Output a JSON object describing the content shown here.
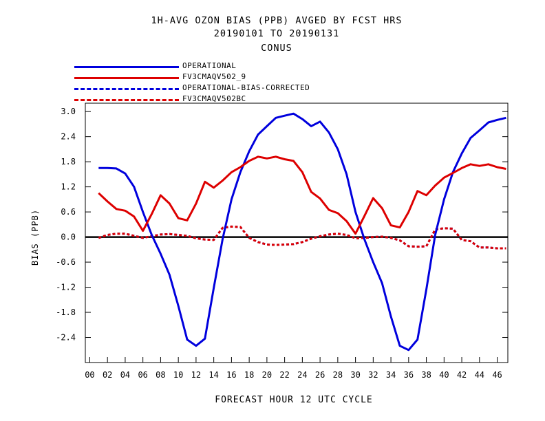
{
  "chart_data": {
    "type": "line",
    "title": [
      "1H-AVG OZON BIAS (PPB)  AVGED BY FCST HRS",
      "20190101 TO 20190131",
      "CONUS"
    ],
    "xlabel": "FORECAST HOUR  12 UTC CYCLE",
    "ylabel": "BIAS (PPB)",
    "xlim": [
      -0.5,
      47.2
    ],
    "ylim": [
      -3.0,
      3.2
    ],
    "xticks": [
      "00",
      "02",
      "04",
      "06",
      "08",
      "10",
      "12",
      "14",
      "16",
      "18",
      "20",
      "22",
      "24",
      "26",
      "28",
      "30",
      "32",
      "34",
      "36",
      "38",
      "40",
      "42",
      "44",
      "46"
    ],
    "yticks": [
      "3.0",
      "2.4",
      "1.8",
      "1.2",
      "0.6",
      "0.0",
      "-0.6",
      "-1.2",
      "-1.8",
      "-2.4"
    ],
    "legend_position": "top-left",
    "grid": false,
    "zero_line": true,
    "x": [
      1,
      2,
      3,
      4,
      5,
      6,
      7,
      8,
      9,
      10,
      11,
      12,
      13,
      14,
      15,
      16,
      17,
      18,
      19,
      20,
      21,
      22,
      23,
      24,
      25,
      26,
      27,
      28,
      29,
      30,
      31,
      32,
      33,
      34,
      35,
      36,
      37,
      38,
      39,
      40,
      41,
      42,
      43,
      44,
      45,
      46,
      47
    ],
    "series": [
      {
        "name": "OPERATIONAL",
        "color": "#0000dd",
        "style": "solid",
        "values": [
          1.65,
          1.65,
          1.64,
          1.52,
          1.2,
          0.6,
          0.05,
          -0.4,
          -0.9,
          -1.65,
          -2.45,
          -2.6,
          -2.43,
          -1.22,
          -0.05,
          0.9,
          1.55,
          2.05,
          2.45,
          2.65,
          2.85,
          2.9,
          2.95,
          2.82,
          2.65,
          2.76,
          2.5,
          2.1,
          1.5,
          0.6,
          -0.05,
          -0.6,
          -1.1,
          -1.9,
          -2.6,
          -2.7,
          -2.45,
          -1.25,
          0.05,
          0.9,
          1.55,
          2.0,
          2.37,
          2.55,
          2.74,
          2.8,
          2.85
        ]
      },
      {
        "name": "FV3CMAQV502_9",
        "color": "#dd0000",
        "style": "solid",
        "values": [
          1.05,
          0.85,
          0.67,
          0.63,
          0.49,
          0.15,
          0.55,
          1.0,
          0.8,
          0.45,
          0.4,
          0.8,
          1.32,
          1.18,
          1.35,
          1.55,
          1.67,
          1.82,
          1.92,
          1.88,
          1.92,
          1.86,
          1.82,
          1.55,
          1.08,
          0.92,
          0.65,
          0.57,
          0.38,
          0.08,
          0.5,
          0.93,
          0.69,
          0.28,
          0.23,
          0.6,
          1.1,
          1.0,
          1.23,
          1.42,
          1.53,
          1.65,
          1.74,
          1.7,
          1.74,
          1.67,
          1.63
        ]
      },
      {
        "name": "OPERATIONAL-BIAS-CORRECTED",
        "color": "#0000dd",
        "style": "dashed",
        "values": [
          -0.02,
          0.05,
          0.08,
          0.08,
          0.03,
          -0.02,
          0.02,
          0.06,
          0.07,
          0.05,
          0.03,
          -0.03,
          -0.06,
          -0.07,
          0.22,
          0.25,
          0.24,
          -0.02,
          -0.12,
          -0.18,
          -0.19,
          -0.18,
          -0.17,
          -0.12,
          -0.04,
          0.02,
          0.06,
          0.08,
          0.05,
          -0.03,
          -0.02,
          0.0,
          0.01,
          -0.02,
          -0.08,
          -0.22,
          -0.23,
          -0.22,
          0.18,
          0.21,
          0.2,
          -0.07,
          -0.1,
          -0.25,
          -0.25,
          -0.27,
          -0.27
        ]
      },
      {
        "name": "FV3CMAQV502BC",
        "color": "#dd0000",
        "style": "dashed",
        "values": [
          -0.02,
          0.05,
          0.08,
          0.08,
          0.03,
          -0.02,
          0.02,
          0.06,
          0.07,
          0.05,
          0.03,
          -0.03,
          -0.06,
          -0.07,
          0.22,
          0.25,
          0.24,
          -0.02,
          -0.12,
          -0.18,
          -0.19,
          -0.18,
          -0.17,
          -0.12,
          -0.04,
          0.02,
          0.06,
          0.08,
          0.05,
          -0.03,
          -0.02,
          0.0,
          0.01,
          -0.02,
          -0.08,
          -0.22,
          -0.23,
          -0.22,
          0.18,
          0.21,
          0.2,
          -0.07,
          -0.1,
          -0.25,
          -0.25,
          -0.27,
          -0.27
        ]
      }
    ]
  }
}
